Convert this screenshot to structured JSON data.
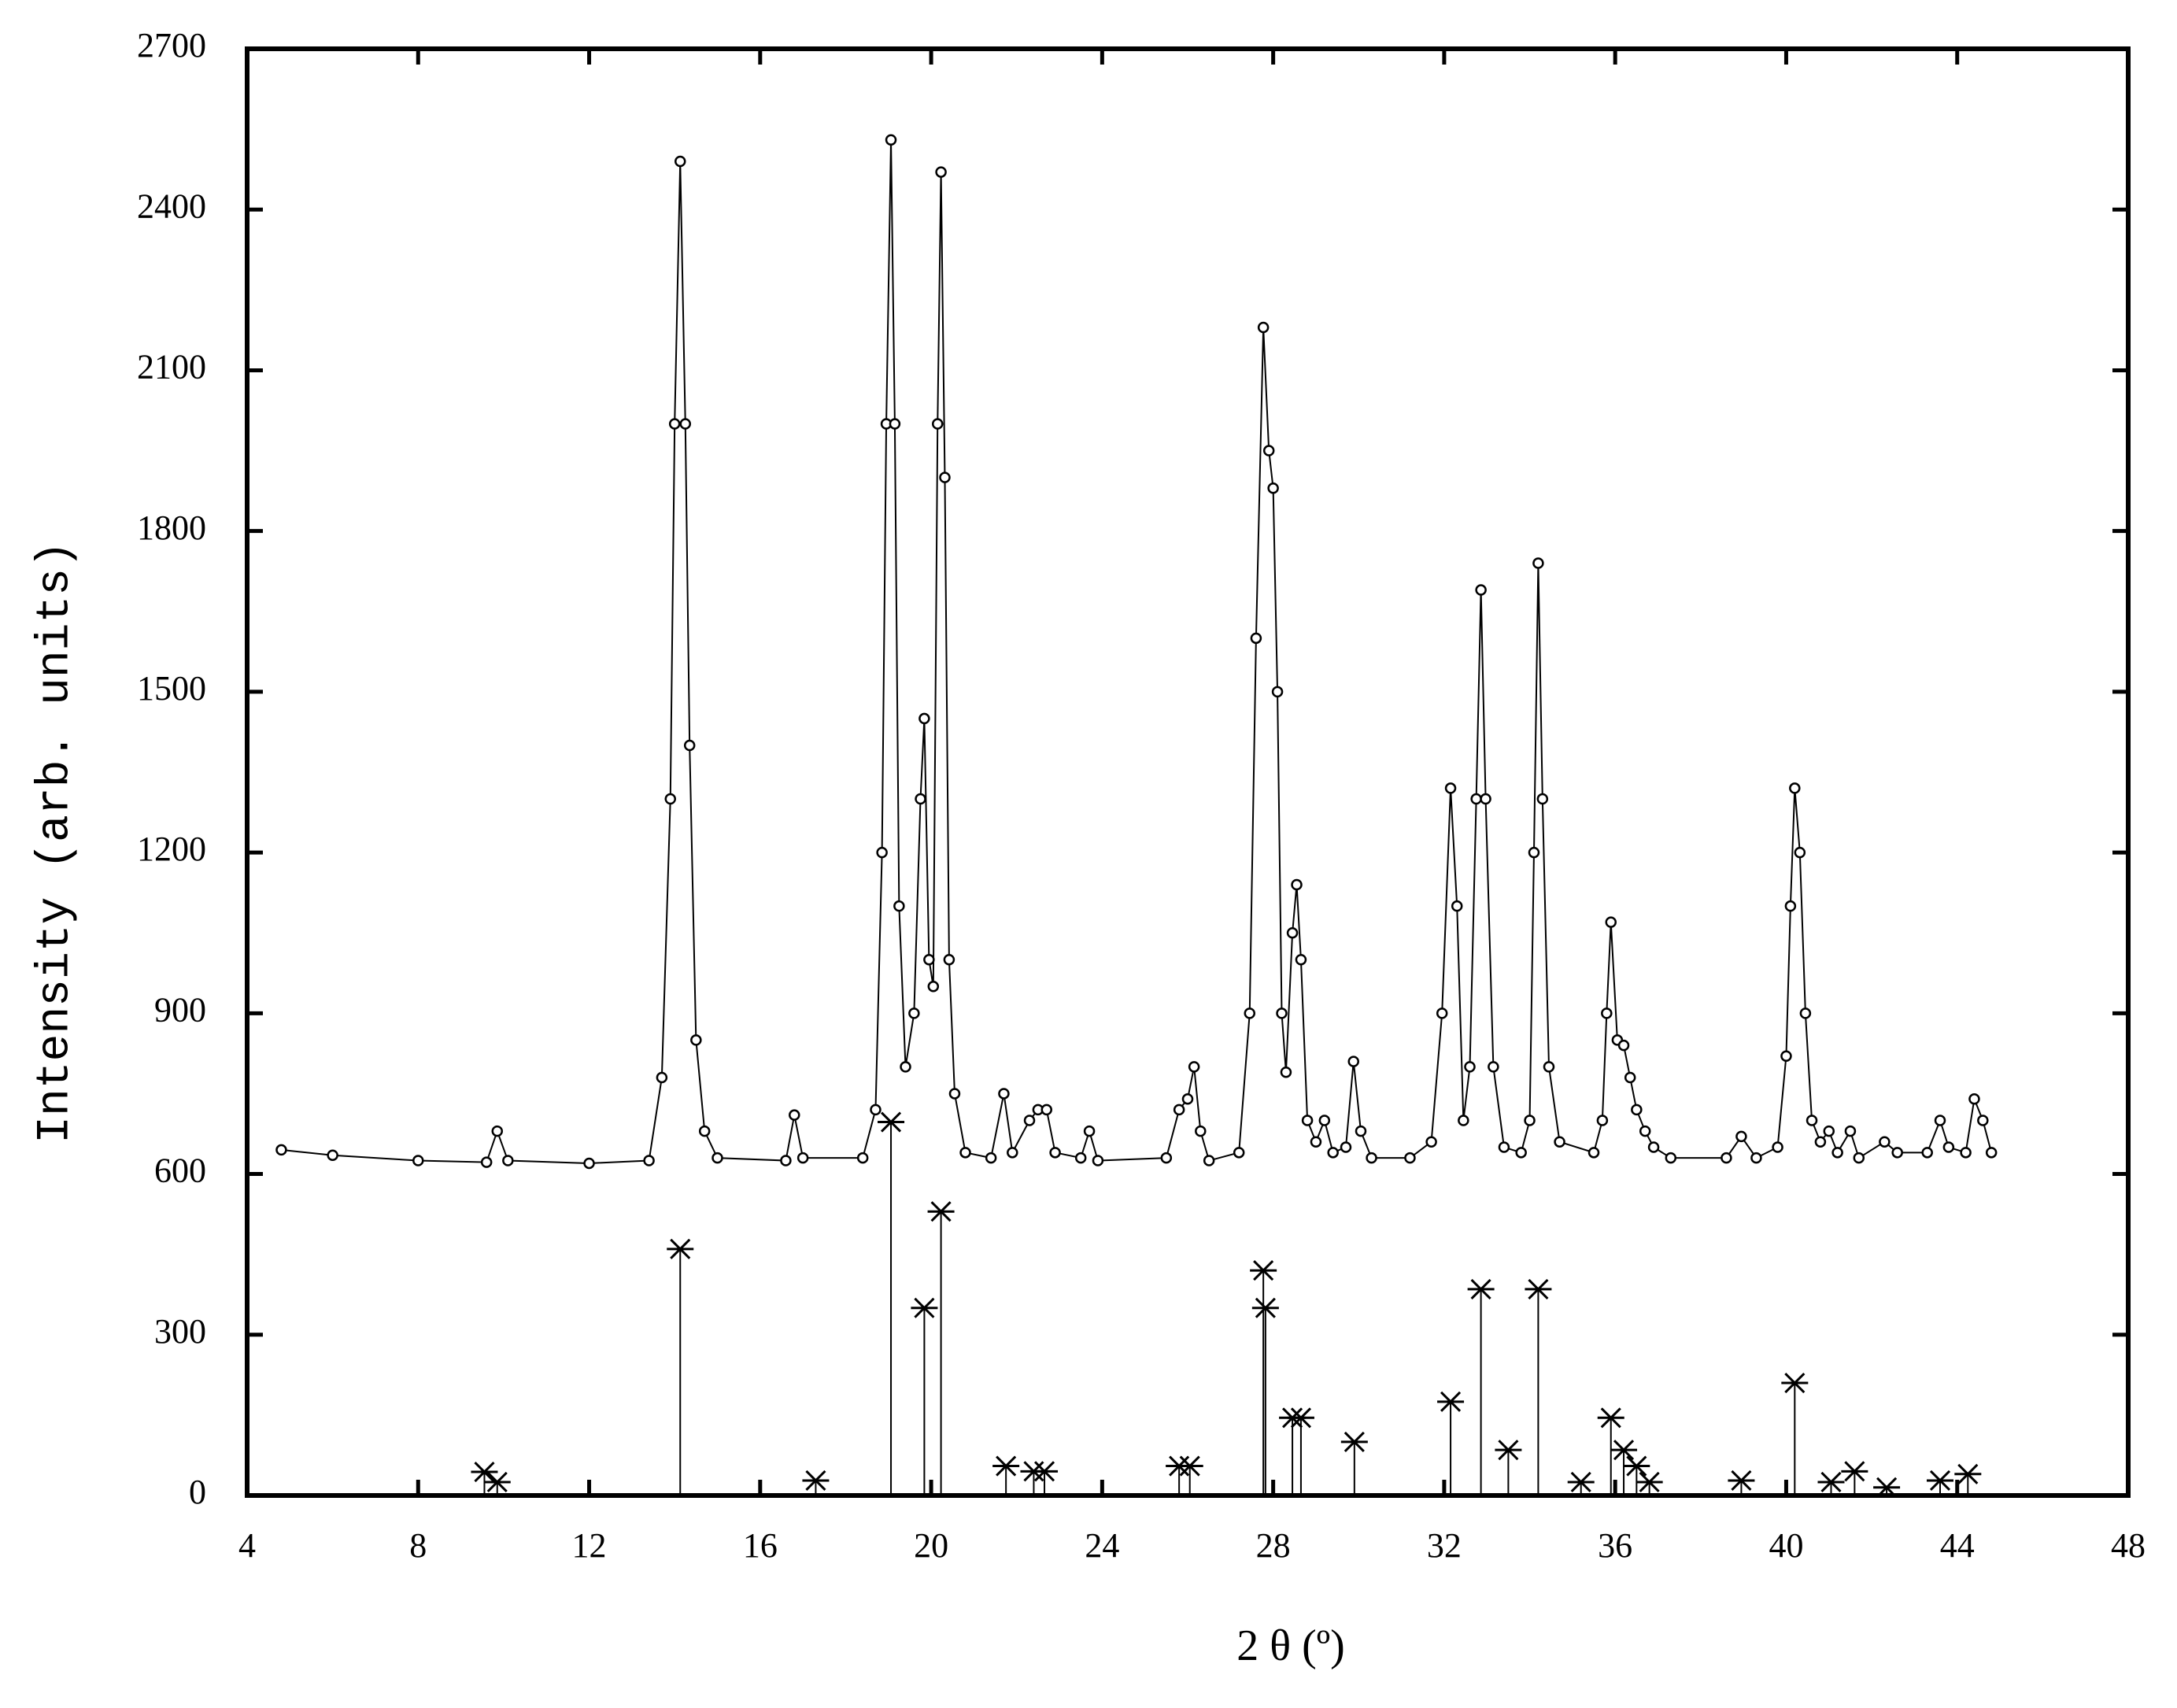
{
  "chart_data": {
    "type": "line",
    "xlabel": "2 θ (º)",
    "ylabel": "Intensity (arb. units)",
    "xlim": [
      4,
      48
    ],
    "xticks": [
      4,
      8,
      12,
      16,
      20,
      24,
      28,
      32,
      36,
      40,
      44,
      48
    ],
    "ylim": [
      0,
      2700
    ],
    "yticks": [
      0,
      300,
      600,
      900,
      1200,
      1500,
      1800,
      2100,
      2400,
      2700
    ],
    "series": [
      {
        "type": "line",
        "marker": "circle",
        "color": "#000000",
        "x": [
          4.8,
          6,
          8,
          9.6,
          9.85,
          10.1,
          12,
          13.4,
          13.7,
          13.9,
          14.0,
          14.13,
          14.25,
          14.35,
          14.5,
          14.7,
          15.0,
          16.6,
          16.8,
          17.0,
          18.4,
          18.7,
          18.85,
          18.95,
          19.06,
          19.15,
          19.25,
          19.4,
          19.6,
          19.75,
          19.84,
          19.95,
          20.05,
          20.15,
          20.23,
          20.32,
          20.42,
          20.55,
          20.8,
          21.4,
          21.7,
          21.9,
          22.3,
          22.5,
          22.7,
          22.9,
          23.5,
          23.7,
          23.9,
          25.5,
          25.8,
          26.0,
          26.15,
          26.3,
          26.5,
          27.2,
          27.45,
          27.6,
          27.77,
          27.9,
          28.0,
          28.1,
          28.2,
          28.3,
          28.45,
          28.55,
          28.65,
          28.8,
          29.0,
          29.2,
          29.4,
          29.7,
          29.88,
          30.05,
          30.3,
          31.2,
          31.7,
          31.95,
          32.15,
          32.3,
          32.45,
          32.6,
          32.75,
          32.86,
          32.97,
          33.15,
          33.4,
          33.8,
          34.0,
          34.1,
          34.2,
          34.3,
          34.45,
          34.7,
          35.5,
          35.7,
          35.8,
          35.9,
          36.05,
          36.2,
          36.35,
          36.5,
          36.7,
          36.9,
          37.3,
          38.6,
          38.95,
          39.3,
          39.8,
          40.0,
          40.1,
          40.2,
          40.32,
          40.45,
          40.6,
          40.8,
          41.0,
          41.2,
          41.5,
          41.7,
          42.3,
          42.6,
          43.3,
          43.6,
          43.8,
          44.2,
          44.4,
          44.6,
          44.8
        ],
        "values": [
          645,
          635,
          625,
          622,
          680,
          625,
          620,
          625,
          780,
          1300,
          2000,
          2490,
          2000,
          1400,
          850,
          680,
          630,
          625,
          710,
          630,
          630,
          720,
          1200,
          2000,
          2530,
          2000,
          1100,
          800,
          900,
          1300,
          1450,
          1000,
          950,
          2000,
          2470,
          1900,
          1000,
          750,
          640,
          630,
          750,
          640,
          700,
          720,
          720,
          640,
          630,
          680,
          625,
          630,
          720,
          740,
          800,
          680,
          625,
          640,
          900,
          1600,
          2180,
          1950,
          1880,
          1500,
          900,
          790,
          1050,
          1140,
          1000,
          700,
          660,
          700,
          640,
          650,
          810,
          680,
          630,
          630,
          660,
          900,
          1320,
          1100,
          700,
          800,
          1300,
          1690,
          1300,
          800,
          650,
          640,
          700,
          1200,
          1740,
          1300,
          800,
          660,
          640,
          700,
          900,
          1070,
          850,
          840,
          780,
          720,
          680,
          650,
          630,
          630,
          670,
          630,
          650,
          820,
          1100,
          1320,
          1200,
          900,
          700,
          660,
          680,
          640,
          680,
          630,
          660,
          640,
          640,
          700,
          650,
          640,
          740,
          700,
          640
        ]
      },
      {
        "type": "stem",
        "marker": "asterisk",
        "color": "#000000",
        "x": [
          9.55,
          9.85,
          14.13,
          17.3,
          19.06,
          19.84,
          20.23,
          21.75,
          22.4,
          22.65,
          25.8,
          26.05,
          27.77,
          27.82,
          28.45,
          28.65,
          29.9,
          32.15,
          32.86,
          33.5,
          34.2,
          35.2,
          35.9,
          36.2,
          36.5,
          36.8,
          38.95,
          40.2,
          41.05,
          41.6,
          42.35,
          43.6,
          44.25
        ],
        "values": [
          44,
          25,
          460,
          28,
          697,
          350,
          530,
          55,
          45,
          45,
          55,
          55,
          420,
          350,
          145,
          145,
          100,
          175,
          385,
          85,
          385,
          25,
          145,
          85,
          55,
          25,
          28,
          210,
          25,
          45,
          15,
          28,
          40
        ]
      }
    ]
  }
}
